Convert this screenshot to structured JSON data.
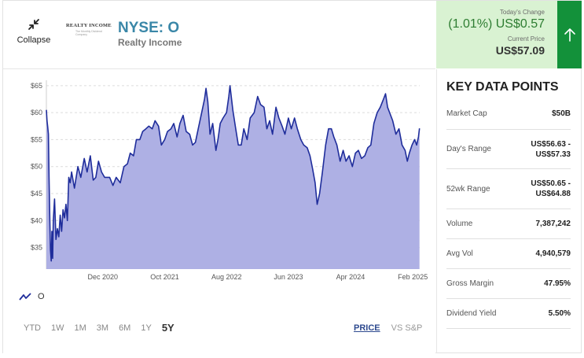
{
  "header": {
    "collapse_label": "Collapse",
    "logo_text": "REALTY INCOME",
    "logo_tagline": "The Monthly Dividend Company",
    "ticker": "NYSE: O",
    "company": "Realty Income"
  },
  "quote": {
    "change_caption": "Today's Change",
    "change_value": "(1.01%) US$0.57",
    "price_caption": "Current Price",
    "price_value": "US$57.09",
    "direction_icon": "arrow-up-icon",
    "accent_color": "#13913a",
    "box_color": "#d9f2d2"
  },
  "chart_data": {
    "type": "area",
    "series": [
      {
        "name": "O",
        "values": [
          [
            "2020-02-28",
            60.5
          ],
          [
            "2020-03-02",
            58.5
          ],
          [
            "2020-03-05",
            57.5
          ],
          [
            "2020-03-09",
            56.0
          ],
          [
            "2020-03-12",
            48.0
          ],
          [
            "2020-03-16",
            40.0
          ],
          [
            "2020-03-19",
            34.5
          ],
          [
            "2020-03-23",
            32.5
          ],
          [
            "2020-03-26",
            38.0
          ],
          [
            "2020-03-30",
            33.0
          ],
          [
            "2020-04-02",
            40.0
          ],
          [
            "2020-04-08",
            44.0
          ],
          [
            "2020-04-15",
            36.5
          ],
          [
            "2020-04-22",
            38.5
          ],
          [
            "2020-04-29",
            37.0
          ],
          [
            "2020-05-06",
            41.0
          ],
          [
            "2020-05-13",
            38.0
          ],
          [
            "2020-05-20",
            42.0
          ],
          [
            "2020-05-27",
            40.5
          ],
          [
            "2020-06-03",
            43.0
          ],
          [
            "2020-06-10",
            40.0
          ],
          [
            "2020-06-17",
            48.0
          ],
          [
            "2020-06-24",
            47.0
          ],
          [
            "2020-07-01",
            49.0
          ],
          [
            "2020-07-15",
            46.0
          ],
          [
            "2020-08-01",
            50.0
          ],
          [
            "2020-08-15",
            48.0
          ],
          [
            "2020-09-01",
            51.5
          ],
          [
            "2020-09-15",
            49.0
          ],
          [
            "2020-10-01",
            52.0
          ],
          [
            "2020-10-15",
            47.5
          ],
          [
            "2020-10-28",
            48.0
          ],
          [
            "2020-11-10",
            51.0
          ],
          [
            "2020-11-25",
            49.0
          ],
          [
            "2020-12-10",
            48.0
          ],
          [
            "2021-01-04",
            48.0
          ],
          [
            "2021-01-20",
            46.5
          ],
          [
            "2021-02-05",
            48.0
          ],
          [
            "2021-02-25",
            47.0
          ],
          [
            "2021-03-15",
            50.0
          ],
          [
            "2021-04-01",
            50.5
          ],
          [
            "2021-04-15",
            52.5
          ],
          [
            "2021-05-01",
            52.0
          ],
          [
            "2021-05-15",
            55.0
          ],
          [
            "2021-06-01",
            55.0
          ],
          [
            "2021-06-15",
            56.5
          ],
          [
            "2021-07-01",
            57.0
          ],
          [
            "2021-07-15",
            57.5
          ],
          [
            "2021-08-01",
            57.0
          ],
          [
            "2021-08-15",
            58.5
          ],
          [
            "2021-09-01",
            57.5
          ],
          [
            "2021-09-15",
            54.0
          ],
          [
            "2021-10-01",
            55.0
          ],
          [
            "2021-10-15",
            56.5
          ],
          [
            "2021-11-01",
            57.0
          ],
          [
            "2021-11-15",
            58.0
          ],
          [
            "2021-12-01",
            55.5
          ],
          [
            "2021-12-15",
            58.0
          ],
          [
            "2021-12-31",
            59.5
          ],
          [
            "2022-01-15",
            56.5
          ],
          [
            "2022-02-01",
            56.0
          ],
          [
            "2022-02-15",
            54.0
          ],
          [
            "2022-03-01",
            54.5
          ],
          [
            "2022-03-15",
            57.0
          ],
          [
            "2022-04-01",
            60.0
          ],
          [
            "2022-04-15",
            62.5
          ],
          [
            "2022-04-22",
            64.5
          ],
          [
            "2022-05-01",
            62.0
          ],
          [
            "2022-05-12",
            56.0
          ],
          [
            "2022-05-25",
            58.0
          ],
          [
            "2022-06-10",
            53.0
          ],
          [
            "2022-06-20",
            55.0
          ],
          [
            "2022-07-01",
            58.0
          ],
          [
            "2022-07-15",
            59.0
          ],
          [
            "2022-08-01",
            60.0
          ],
          [
            "2022-08-12",
            63.0
          ],
          [
            "2022-08-18",
            65.0
          ],
          [
            "2022-09-01",
            60.5
          ],
          [
            "2022-09-15",
            57.0
          ],
          [
            "2022-09-28",
            54.0
          ],
          [
            "2022-10-12",
            54.0
          ],
          [
            "2022-10-25",
            57.0
          ],
          [
            "2022-11-10",
            55.0
          ],
          [
            "2022-11-25",
            59.0
          ],
          [
            "2022-12-15",
            60.0
          ],
          [
            "2023-01-01",
            63.0
          ],
          [
            "2023-01-15",
            61.5
          ],
          [
            "2023-02-01",
            61.0
          ],
          [
            "2023-02-15",
            57.0
          ],
          [
            "2023-03-01",
            58.5
          ],
          [
            "2023-03-15",
            56.0
          ],
          [
            "2023-04-01",
            61.0
          ],
          [
            "2023-04-15",
            59.0
          ],
          [
            "2023-05-01",
            57.5
          ],
          [
            "2023-05-15",
            56.0
          ],
          [
            "2023-06-01",
            59.0
          ],
          [
            "2023-06-15",
            57.0
          ],
          [
            "2023-07-01",
            59.0
          ],
          [
            "2023-07-15",
            57.0
          ],
          [
            "2023-08-01",
            55.0
          ],
          [
            "2023-08-15",
            54.0
          ],
          [
            "2023-09-01",
            53.5
          ],
          [
            "2023-09-15",
            52.0
          ],
          [
            "2023-09-28",
            49.5
          ],
          [
            "2023-10-10",
            47.0
          ],
          [
            "2023-10-20",
            43.0
          ],
          [
            "2023-11-01",
            45.0
          ],
          [
            "2023-11-15",
            49.0
          ],
          [
            "2023-12-01",
            54.0
          ],
          [
            "2023-12-15",
            57.0
          ],
          [
            "2023-12-29",
            57.0
          ],
          [
            "2024-01-10",
            55.5
          ],
          [
            "2024-01-25",
            54.0
          ],
          [
            "2024-02-10",
            51.0
          ],
          [
            "2024-02-25",
            53.0
          ],
          [
            "2024-03-10",
            51.0
          ],
          [
            "2024-03-25",
            52.0
          ],
          [
            "2024-04-10",
            50.0
          ],
          [
            "2024-04-25",
            52.5
          ],
          [
            "2024-05-10",
            53.0
          ],
          [
            "2024-05-25",
            51.5
          ],
          [
            "2024-06-10",
            52.0
          ],
          [
            "2024-06-25",
            53.5
          ],
          [
            "2024-07-10",
            54.0
          ],
          [
            "2024-07-25",
            58.0
          ],
          [
            "2024-08-10",
            60.0
          ],
          [
            "2024-08-25",
            61.0
          ],
          [
            "2024-09-10",
            62.5
          ],
          [
            "2024-09-20",
            63.5
          ],
          [
            "2024-09-30",
            61.0
          ],
          [
            "2024-10-10",
            60.0
          ],
          [
            "2024-10-25",
            58.5
          ],
          [
            "2024-11-10",
            56.0
          ],
          [
            "2024-11-25",
            57.0
          ],
          [
            "2024-12-10",
            54.0
          ],
          [
            "2024-12-25",
            53.0
          ],
          [
            "2025-01-05",
            51.0
          ],
          [
            "2025-01-15",
            52.5
          ],
          [
            "2025-01-28",
            54.0
          ],
          [
            "2025-02-10",
            55.0
          ],
          [
            "2025-02-20",
            54.0
          ],
          [
            "2025-03-01",
            55.5
          ],
          [
            "2025-03-06",
            57.09
          ]
        ]
      }
    ],
    "x_range": [
      "2020-02-28",
      "2025-03-07"
    ],
    "y_range": [
      31,
      66
    ],
    "y_ticks": [
      65,
      60,
      55,
      50,
      45,
      40,
      35
    ],
    "y_tick_labels": [
      "$65",
      "$60",
      "$55",
      "$50",
      "$45",
      "$40",
      "$35"
    ],
    "x_ticks": [
      {
        "label": "Dec 2020",
        "date": "2020-12-01"
      },
      {
        "label": "Oct 2021",
        "date": "2021-10-01"
      },
      {
        "label": "Aug 2022",
        "date": "2022-08-01"
      },
      {
        "label": "Jun 2023",
        "date": "2023-06-01"
      },
      {
        "label": "Apr 2024",
        "date": "2024-04-01"
      },
      {
        "label": "Feb 2025",
        "date": "2025-02-01"
      }
    ],
    "grid": "horizontal-dashed",
    "line_color": "#1f2d9b",
    "fill_color": "#aeb0e4"
  },
  "legend": {
    "icon": "trend-line-icon",
    "label": "O"
  },
  "periods": [
    "YTD",
    "1W",
    "1M",
    "3M",
    "6M",
    "1Y",
    "5Y"
  ],
  "active_period": "5Y",
  "modes": [
    "PRICE",
    "VS S&P"
  ],
  "active_mode": "PRICE",
  "key_data": {
    "title": "KEY DATA POINTS",
    "rows": [
      {
        "label": "Market Cap",
        "value_lines": [
          "$50B"
        ]
      },
      {
        "label": "Day's Range",
        "value_lines": [
          "US$56.63 -",
          "US$57.33"
        ]
      },
      {
        "label": "52wk Range",
        "value_lines": [
          "US$50.65 -",
          "US$64.88"
        ]
      },
      {
        "label": "Volume",
        "value_lines": [
          "7,387,242"
        ]
      },
      {
        "label": "Avg Vol",
        "value_lines": [
          "4,940,579"
        ]
      },
      {
        "label": "Gross Margin",
        "value_lines": [
          "47.95%"
        ]
      },
      {
        "label": "Dividend Yield",
        "value_lines": [
          "5.50%"
        ]
      }
    ]
  }
}
